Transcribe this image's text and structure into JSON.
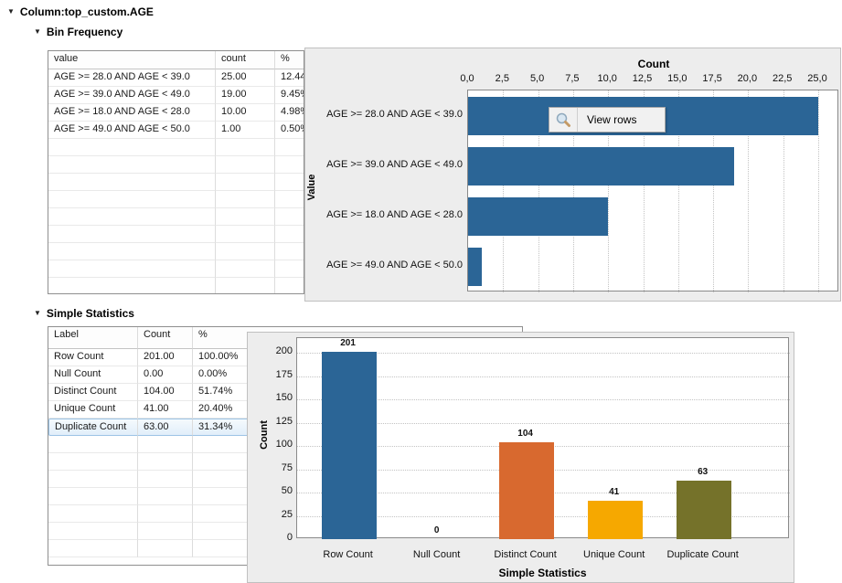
{
  "headers": {
    "column": "Column:top_custom.AGE",
    "bin_frequency": "Bin Frequency",
    "simple_statistics": "Simple Statistics"
  },
  "view_rows": {
    "label": "View rows",
    "icon": "magnifier-icon"
  },
  "bin_table": {
    "headers": [
      "value",
      "count",
      "%"
    ],
    "rows": [
      [
        "AGE >= 28.0 AND AGE < 39.0",
        "25.00",
        "12.44%"
      ],
      [
        "AGE >= 39.0 AND AGE < 49.0",
        "19.00",
        "9.45%"
      ],
      [
        "AGE >= 18.0 AND AGE < 28.0",
        "10.00",
        "4.98%"
      ],
      [
        "AGE >= 49.0 AND AGE < 50.0",
        "1.00",
        "0.50%"
      ]
    ],
    "empty_rows": 9
  },
  "stats_table": {
    "headers": [
      "Label",
      "Count",
      "%"
    ],
    "rows": [
      [
        "Row Count",
        "201.00",
        "100.00%"
      ],
      [
        "Null Count",
        "0.00",
        "0.00%"
      ],
      [
        "Distinct Count",
        "104.00",
        "51.74%"
      ],
      [
        "Unique Count",
        "41.00",
        "20.40%"
      ],
      [
        "Duplicate Count",
        "63.00",
        "31.34%"
      ]
    ],
    "selected_row": 4,
    "empty_rows": 7
  },
  "chart_data": [
    {
      "type": "bar",
      "orientation": "horizontal",
      "title": "Count",
      "xlabel": "Count",
      "ylabel": "Value",
      "categories": [
        "AGE >= 28.0 AND AGE < 39.0",
        "AGE >= 39.0 AND AGE < 49.0",
        "AGE >= 18.0 AND AGE < 28.0",
        "AGE >= 49.0 AND AGE < 50.0"
      ],
      "values": [
        25,
        19,
        10,
        1
      ],
      "xlim": [
        0,
        25
      ],
      "x_tick_labels": [
        "0,0",
        "2,5",
        "5,0",
        "7,5",
        "10,0",
        "12,5",
        "15,0",
        "17,5",
        "20,0",
        "22,5",
        "25,0"
      ],
      "grid": "vertical-dotted",
      "bar_color": "#2b6596",
      "legend": "none"
    },
    {
      "type": "bar",
      "orientation": "vertical",
      "title": "",
      "xlabel": "Simple Statistics",
      "ylabel": "Count",
      "categories": [
        "Row Count",
        "Null Count",
        "Distinct Count",
        "Unique Count",
        "Duplicate Count"
      ],
      "values": [
        201,
        0,
        104,
        41,
        63
      ],
      "value_labels": [
        "201",
        "0",
        "104",
        "41",
        "63"
      ],
      "bar_colors": [
        "#2b6596",
        null,
        "#d8692f",
        "#f6a800",
        "#75722a"
      ],
      "ylim": [
        0,
        215
      ],
      "y_ticks": [
        0,
        25,
        50,
        75,
        100,
        125,
        150,
        175,
        200
      ],
      "grid": "horizontal-dotted",
      "legend": "none"
    }
  ],
  "colors": {
    "panel_bg": "#ededed",
    "bar_blue": "#2b6596",
    "bar_orange": "#d8692f",
    "bar_yellow": "#f6a800",
    "bar_olive": "#75722a",
    "selected_row_border": "#9cc3e5"
  }
}
